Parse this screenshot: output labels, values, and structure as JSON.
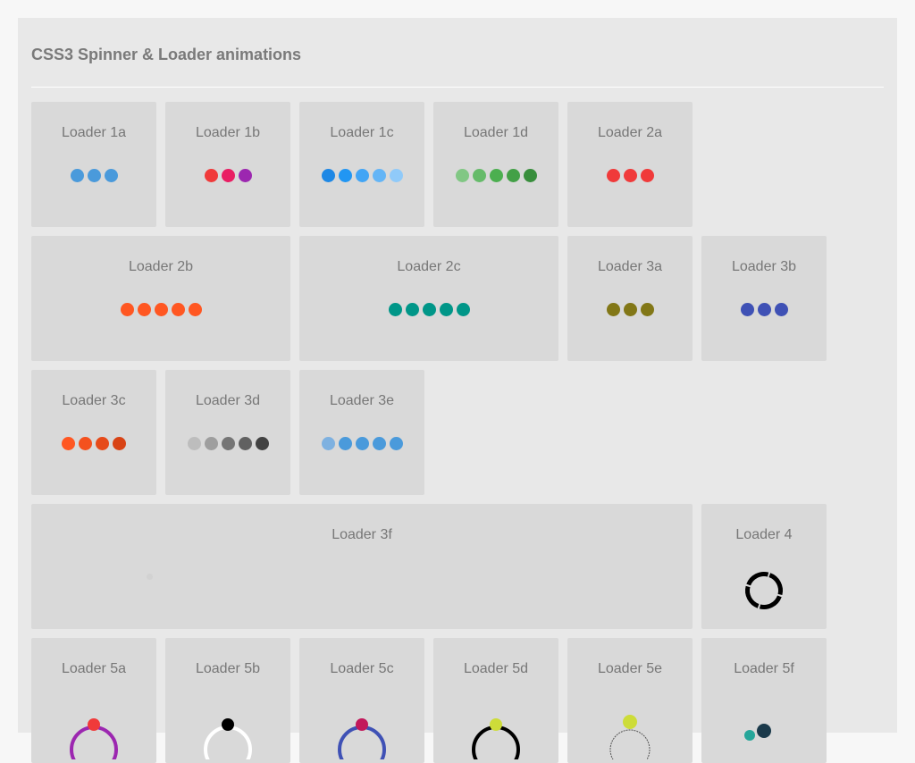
{
  "page": {
    "title": "CSS3 Spinner & Loader animations"
  },
  "loaders": [
    {
      "id": "1a",
      "label": "Loader 1a",
      "dots": [
        "#4a9adb",
        "#4a9adb",
        "#4a9adb"
      ]
    },
    {
      "id": "1b",
      "label": "Loader 1b",
      "dots": [
        "#f03a3a",
        "#e91e63",
        "#9c27b0"
      ]
    },
    {
      "id": "1c",
      "label": "Loader 1c",
      "dots": [
        "#1e88e5",
        "#2196f3",
        "#42a5f5",
        "#64b5f6",
        "#90caf9"
      ]
    },
    {
      "id": "1d",
      "label": "Loader 1d",
      "dots": [
        "#81c784",
        "#66bb6a",
        "#4caf50",
        "#43a047",
        "#388e3c"
      ]
    },
    {
      "id": "2a",
      "label": "Loader 2a",
      "dots": [
        "#f03a3a",
        "#f03a3a",
        "#f03a3a"
      ]
    },
    {
      "id": "2b",
      "label": "Loader 2b",
      "dots": [
        "#ff5722",
        "#ff5722",
        "#ff5722",
        "#ff5722",
        "#ff5722"
      ]
    },
    {
      "id": "2c",
      "label": "Loader 2c",
      "dots": [
        "#009688",
        "#009688",
        "#009688",
        "#009688",
        "#009688"
      ]
    },
    {
      "id": "3a",
      "label": "Loader 3a",
      "dots": [
        "#827717",
        "#827717",
        "#827717"
      ]
    },
    {
      "id": "3b",
      "label": "Loader 3b",
      "dots": [
        "#3f51b5",
        "#3f51b5",
        "#3f51b5"
      ]
    },
    {
      "id": "3c",
      "label": "Loader 3c",
      "dots": [
        "#ff5722",
        "#f4511e",
        "#e64a19",
        "#d84315"
      ]
    },
    {
      "id": "3d",
      "label": "Loader 3d",
      "dots": [
        "#bdbdbd",
        "#9e9e9e",
        "#757575",
        "#616161",
        "#424242"
      ]
    },
    {
      "id": "3e",
      "label": "Loader 3e",
      "dots": [
        "#7eb1e0",
        "#4a9adb",
        "#4a9adb",
        "#4a9adb",
        "#4a9adb"
      ]
    },
    {
      "id": "3f",
      "label": "Loader 3f",
      "dots": []
    },
    {
      "id": "4",
      "label": "Loader 4",
      "style": "ring",
      "color": "#000000"
    },
    {
      "id": "5a",
      "label": "Loader 5a",
      "style": "orbit",
      "ring": "#9c27b0",
      "ball": "#f03a3a"
    },
    {
      "id": "5b",
      "label": "Loader 5b",
      "style": "orbit",
      "ring": "#ffffff",
      "ball": "#000000"
    },
    {
      "id": "5c",
      "label": "Loader 5c",
      "style": "orbit",
      "ring": "#3f51b5",
      "ball": "#c2185b"
    },
    {
      "id": "5d",
      "label": "Loader 5d",
      "style": "orbit",
      "ring": "#000000",
      "ball": "#cddc39"
    },
    {
      "id": "5e",
      "label": "Loader 5e",
      "style": "orbit",
      "ring": "#555555",
      "ball": "#cddc39"
    },
    {
      "id": "5f",
      "label": "Loader 5f",
      "style": "orbit2",
      "ring": "#1b3a4b",
      "ball": "#26a69a"
    }
  ]
}
